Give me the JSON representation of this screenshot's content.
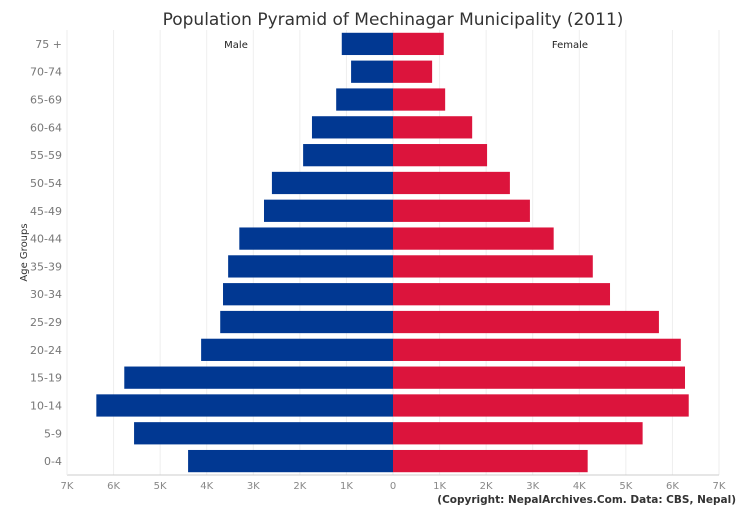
{
  "chart_data": {
    "type": "bar",
    "orientation": "horizontal",
    "title": "Population Pyramid of Mechinagar Municipality (2011)",
    "ylabel": "Age Groups",
    "xlabel": "",
    "xlim": [
      -7000,
      7000
    ],
    "x_tick_labels": [
      "7K",
      "6K",
      "5K",
      "4K",
      "3K",
      "2K",
      "1K",
      "0",
      "1K",
      "2K",
      "3K",
      "4K",
      "5K",
      "6K",
      "7K"
    ],
    "grid": true,
    "categories": [
      "75 +",
      "70-74",
      "65-69",
      "60-64",
      "55-59",
      "50-54",
      "45-49",
      "40-44",
      "35-39",
      "30-34",
      "25-29",
      "20-24",
      "15-19",
      "10-14",
      "5-9",
      "0-4"
    ],
    "series": [
      {
        "name": "Male",
        "color": "#013892",
        "values": [
          1100,
          900,
          1220,
          1740,
          1930,
          2600,
          2770,
          3300,
          3540,
          3650,
          3710,
          4120,
          5770,
          6370,
          5560,
          4400
        ]
      },
      {
        "name": "Female",
        "color": "#dc143c",
        "values": [
          1090,
          840,
          1120,
          1700,
          2020,
          2510,
          2940,
          3450,
          4290,
          4660,
          5710,
          6180,
          6270,
          6350,
          5360,
          4180
        ]
      }
    ]
  },
  "footer": "(Copyright: NepalArchives.Com. Data: CBS, Nepal)"
}
